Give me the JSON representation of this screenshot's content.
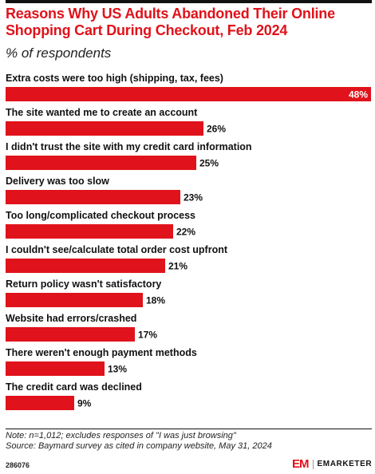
{
  "header": {
    "title": "Reasons Why US Adults Abandoned Their Online Shopping Cart During Checkout, Feb 2024",
    "subtitle": "% of respondents"
  },
  "chart_data": {
    "type": "bar",
    "orientation": "horizontal",
    "categories": [
      "Extra costs were too high (shipping, tax, fees)",
      "The site wanted me to create an account",
      "I didn't trust the site with my credit card information",
      "Delivery was too slow",
      "Too long/complicated checkout process",
      "I couldn't see/calculate total order cost upfront",
      "Return policy wasn't satisfactory",
      "Website had errors/crashed",
      "There weren't enough payment methods",
      "The credit card was declined"
    ],
    "values": [
      48,
      26,
      25,
      23,
      22,
      21,
      18,
      17,
      13,
      9
    ],
    "value_labels": [
      "48%",
      "26%",
      "25%",
      "23%",
      "22%",
      "21%",
      "18%",
      "17%",
      "13%",
      "9%"
    ],
    "unit": "%",
    "xlim": [
      0,
      48
    ],
    "bar_color": "#e0121b",
    "grid": false,
    "legend": "none"
  },
  "footer": {
    "note": "Note: n=1,012; excludes responses of \"I was just browsing\"",
    "source": "Source: Baymard survey as cited in company website, May 31, 2024",
    "chart_id": "286076",
    "logo_mark": "EM",
    "logo_text": "EMARKETER"
  }
}
